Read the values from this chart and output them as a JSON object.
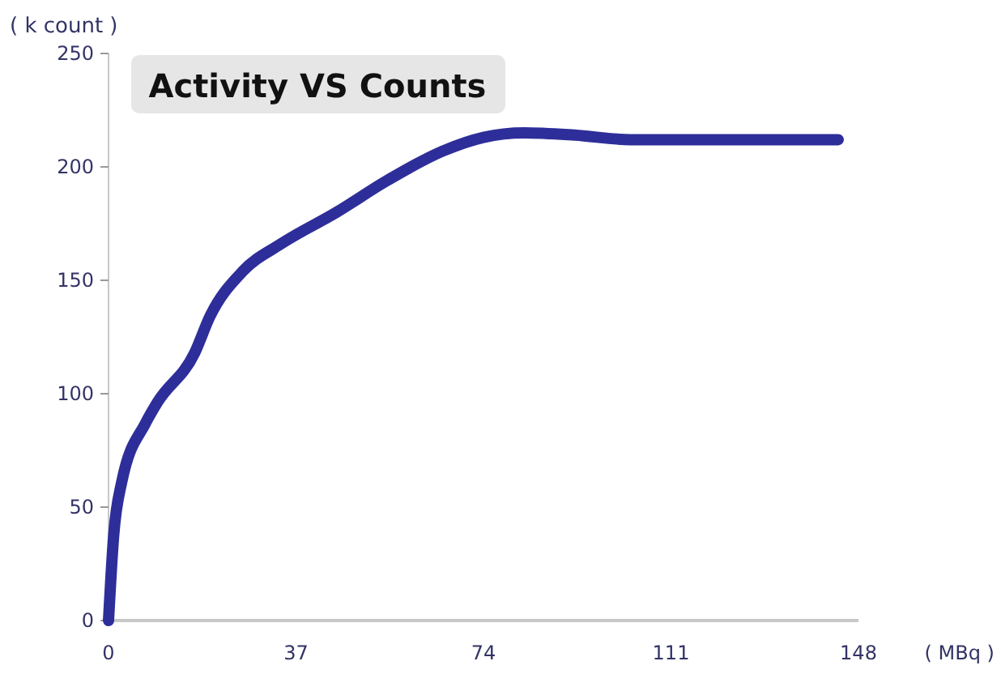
{
  "chart_data": {
    "type": "line",
    "title": "Activity VS Counts",
    "xlabel": "( MBq )",
    "ylabel": "( k count )",
    "x": [
      0,
      1,
      2.6,
      7.3,
      9.6,
      17,
      20,
      26.5,
      34,
      45,
      55,
      66,
      74,
      82,
      92,
      103,
      144
    ],
    "series": [
      {
        "color": "#2e2e9a",
        "values": [
          0,
          37,
          61,
          87,
          96,
          118,
          134,
          154,
          166,
          180,
          194,
          207,
          213,
          215,
          214,
          212,
          212
        ]
      }
    ],
    "xlim": [
      0,
      148
    ],
    "xticks": [
      0,
      37,
      74,
      111,
      148
    ],
    "ylim": [
      0,
      250
    ],
    "yticks": [
      0,
      50,
      100,
      150,
      200,
      250
    ],
    "grid": false,
    "marker": "none",
    "line_style": "solid"
  }
}
